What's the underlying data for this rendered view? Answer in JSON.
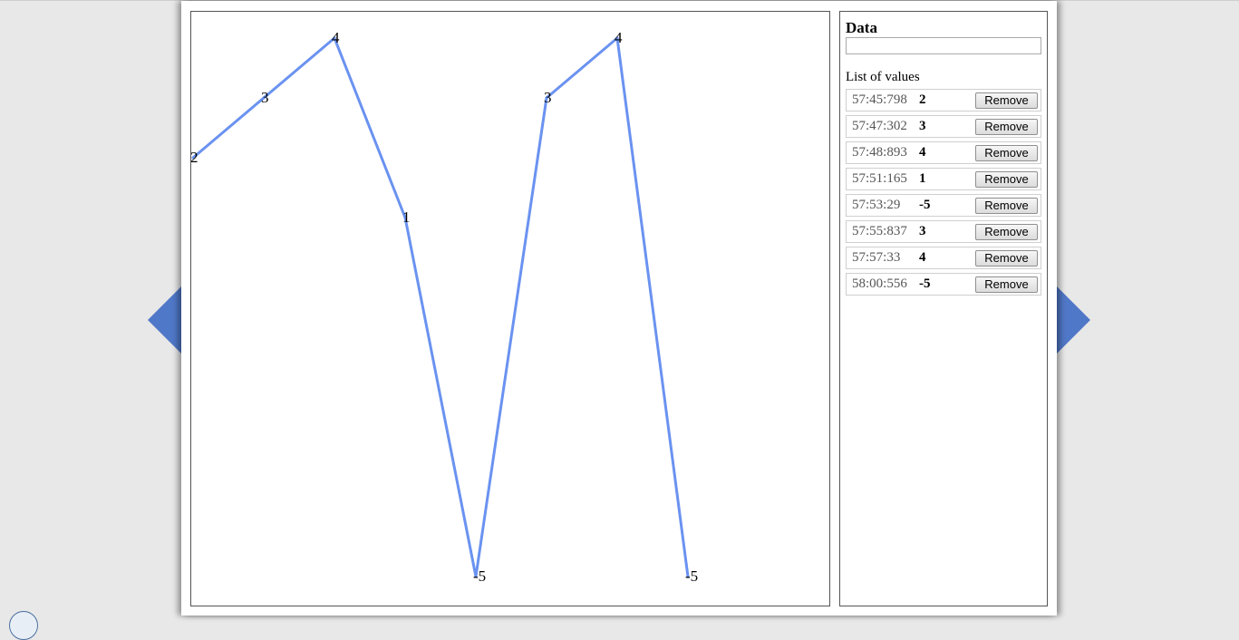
{
  "sidebar": {
    "title": "Data",
    "input_value": "",
    "list_label": "List of values",
    "remove_label": "Remove",
    "entries": [
      {
        "time": "57:45:798",
        "value": "2"
      },
      {
        "time": "57:47:302",
        "value": "3"
      },
      {
        "time": "57:48:893",
        "value": "4"
      },
      {
        "time": "57:51:165",
        "value": "1"
      },
      {
        "time": "57:53:29",
        "value": "-5"
      },
      {
        "time": "57:55:837",
        "value": "3"
      },
      {
        "time": "57:57:33",
        "value": "4"
      },
      {
        "time": "58:00:556",
        "value": "-5"
      }
    ]
  },
  "chart_data": {
    "type": "line",
    "title": "",
    "xlabel": "",
    "ylabel": "",
    "x": [
      "57:45:798",
      "57:47:302",
      "57:48:893",
      "57:51:165",
      "57:53:29",
      "57:55:837",
      "57:57:33",
      "58:00:556"
    ],
    "values": [
      2,
      3,
      4,
      1,
      -5,
      3,
      4,
      -5
    ],
    "ylim": [
      -5,
      4
    ],
    "grid": false,
    "line_color": "#6a92f0",
    "data_labels": true
  },
  "colors": {
    "nav_arrow": "#5078c8"
  },
  "icons": {
    "prev": "chevron-left-icon",
    "next": "chevron-right-icon"
  }
}
